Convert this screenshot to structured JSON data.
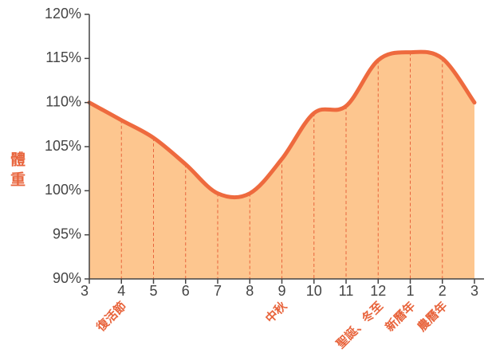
{
  "chart_data": {
    "type": "area",
    "y_label": "體重",
    "categories": [
      "3",
      "4",
      "5",
      "6",
      "7",
      "8",
      "9",
      "10",
      "11",
      "12",
      "1",
      "2",
      "3"
    ],
    "category_label_colors": [
      "#444444",
      "#e8643c",
      "#444444",
      "#444444",
      "#444444",
      "#444444",
      "#e8643c",
      "#444444",
      "#444444",
      "#e8643c",
      "#e8643c",
      "#e8643c",
      "#444444"
    ],
    "annotations": [
      null,
      "復活節",
      null,
      null,
      null,
      null,
      "中秋",
      null,
      null,
      "聖誕、冬至",
      "新曆年",
      "農曆年",
      null
    ],
    "values": [
      110,
      108,
      106,
      103,
      99.7,
      99.7,
      103.6,
      108.8,
      109.6,
      114.8,
      115.7,
      115,
      110
    ],
    "line_color": "#ee6a3e",
    "fill_color": "#fdc68f",
    "annotation_color": "#e8643c",
    "ylim": [
      90,
      120
    ],
    "yticks": [
      {
        "value": 90,
        "label": "90%"
      },
      {
        "value": 95,
        "label": "95%"
      },
      {
        "value": 100,
        "label": "100%"
      },
      {
        "value": 105,
        "label": "105%"
      },
      {
        "value": 110,
        "label": "110%"
      },
      {
        "value": 115,
        "label": "115%"
      },
      {
        "value": 120,
        "label": "120%"
      }
    ]
  }
}
